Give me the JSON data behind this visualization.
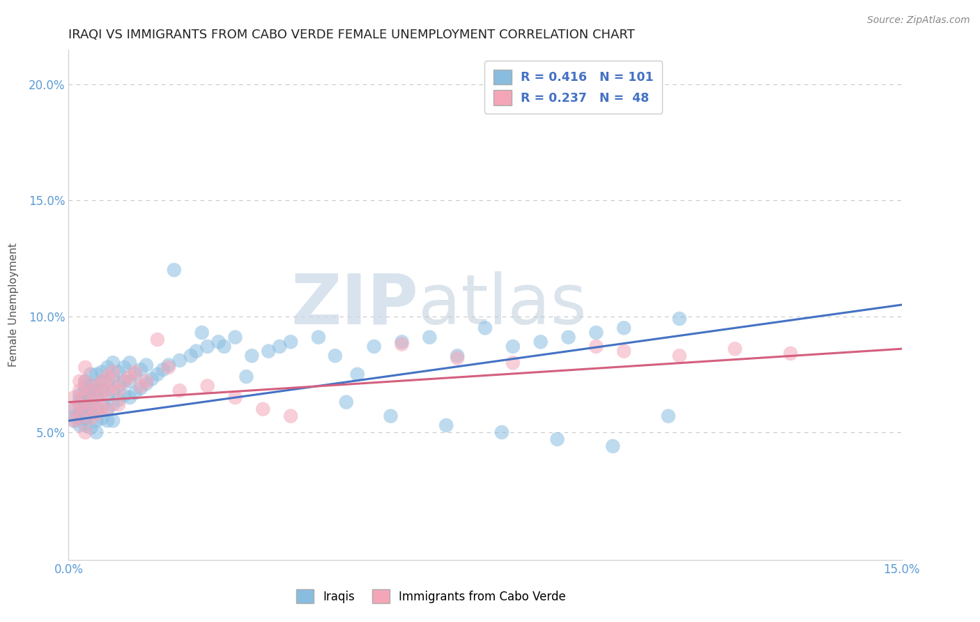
{
  "title": "IRAQI VS IMMIGRANTS FROM CABO VERDE FEMALE UNEMPLOYMENT CORRELATION CHART",
  "source": "Source: ZipAtlas.com",
  "ylabel": "Female Unemployment",
  "xlim": [
    0.0,
    0.15
  ],
  "ylim": [
    -0.005,
    0.215
  ],
  "y_ticks": [
    0.05,
    0.1,
    0.15,
    0.2
  ],
  "y_tick_labels": [
    "5.0%",
    "10.0%",
    "15.0%",
    "20.0%"
  ],
  "blue_R": 0.416,
  "blue_N": 101,
  "pink_R": 0.237,
  "pink_N": 48,
  "blue_color": "#89bde0",
  "pink_color": "#f4a6b8",
  "blue_line_color": "#4472c4",
  "pink_line_color": "#d45f7e",
  "legend_blue_label": "Iraqis",
  "legend_pink_label": "Immigrants from Cabo Verde",
  "watermark_zip": "ZIP",
  "watermark_atlas": "atlas",
  "title_fontsize": 13,
  "axis_label_fontsize": 11,
  "tick_fontsize": 12,
  "source_fontsize": 10,
  "blue_line_x0": 0.0,
  "blue_line_y0": 0.055,
  "blue_line_x1": 0.15,
  "blue_line_y1": 0.105,
  "pink_line_x0": 0.0,
  "pink_line_y0": 0.063,
  "pink_line_x1": 0.15,
  "pink_line_y1": 0.086,
  "blue_scatter_x": [
    0.001,
    0.001,
    0.001,
    0.002,
    0.002,
    0.002,
    0.002,
    0.002,
    0.002,
    0.003,
    0.003,
    0.003,
    0.003,
    0.003,
    0.003,
    0.003,
    0.003,
    0.003,
    0.004,
    0.004,
    0.004,
    0.004,
    0.004,
    0.004,
    0.004,
    0.005,
    0.005,
    0.005,
    0.005,
    0.005,
    0.005,
    0.005,
    0.006,
    0.006,
    0.006,
    0.006,
    0.006,
    0.007,
    0.007,
    0.007,
    0.007,
    0.007,
    0.008,
    0.008,
    0.008,
    0.008,
    0.008,
    0.009,
    0.009,
    0.009,
    0.01,
    0.01,
    0.01,
    0.011,
    0.011,
    0.011,
    0.012,
    0.012,
    0.013,
    0.013,
    0.014,
    0.014,
    0.015,
    0.016,
    0.017,
    0.018,
    0.02,
    0.022,
    0.023,
    0.025,
    0.027,
    0.03,
    0.033,
    0.036,
    0.038,
    0.04,
    0.045,
    0.048,
    0.052,
    0.055,
    0.06,
    0.065,
    0.07,
    0.075,
    0.08,
    0.085,
    0.09,
    0.095,
    0.1,
    0.11,
    0.019,
    0.024,
    0.028,
    0.032,
    0.05,
    0.058,
    0.068,
    0.078,
    0.088,
    0.098,
    0.108
  ],
  "blue_scatter_y": [
    0.057,
    0.06,
    0.055,
    0.058,
    0.062,
    0.064,
    0.056,
    0.053,
    0.066,
    0.06,
    0.065,
    0.058,
    0.07,
    0.063,
    0.056,
    0.068,
    0.072,
    0.053,
    0.06,
    0.065,
    0.07,
    0.058,
    0.075,
    0.052,
    0.068,
    0.06,
    0.065,
    0.07,
    0.055,
    0.075,
    0.05,
    0.068,
    0.062,
    0.068,
    0.072,
    0.056,
    0.076,
    0.06,
    0.066,
    0.072,
    0.055,
    0.078,
    0.062,
    0.068,
    0.074,
    0.055,
    0.08,
    0.064,
    0.07,
    0.076,
    0.066,
    0.072,
    0.078,
    0.065,
    0.072,
    0.08,
    0.067,
    0.075,
    0.069,
    0.077,
    0.071,
    0.079,
    0.073,
    0.075,
    0.077,
    0.079,
    0.081,
    0.083,
    0.085,
    0.087,
    0.089,
    0.091,
    0.083,
    0.085,
    0.087,
    0.089,
    0.091,
    0.083,
    0.075,
    0.087,
    0.089,
    0.091,
    0.083,
    0.095,
    0.087,
    0.089,
    0.091,
    0.093,
    0.095,
    0.099,
    0.12,
    0.093,
    0.087,
    0.074,
    0.063,
    0.057,
    0.053,
    0.05,
    0.047,
    0.044,
    0.057
  ],
  "pink_scatter_x": [
    0.001,
    0.001,
    0.001,
    0.002,
    0.002,
    0.002,
    0.002,
    0.003,
    0.003,
    0.003,
    0.003,
    0.003,
    0.004,
    0.004,
    0.004,
    0.005,
    0.005,
    0.005,
    0.006,
    0.006,
    0.006,
    0.007,
    0.007,
    0.007,
    0.008,
    0.008,
    0.009,
    0.009,
    0.01,
    0.011,
    0.012,
    0.013,
    0.014,
    0.016,
    0.018,
    0.02,
    0.025,
    0.03,
    0.035,
    0.04,
    0.06,
    0.07,
    0.08,
    0.095,
    0.1,
    0.11,
    0.12,
    0.13
  ],
  "pink_scatter_y": [
    0.06,
    0.065,
    0.055,
    0.062,
    0.068,
    0.056,
    0.072,
    0.06,
    0.066,
    0.072,
    0.05,
    0.078,
    0.062,
    0.068,
    0.056,
    0.064,
    0.07,
    0.058,
    0.066,
    0.072,
    0.06,
    0.068,
    0.074,
    0.06,
    0.07,
    0.076,
    0.062,
    0.068,
    0.072,
    0.074,
    0.076,
    0.07,
    0.072,
    0.09,
    0.078,
    0.068,
    0.07,
    0.065,
    0.06,
    0.057,
    0.088,
    0.082,
    0.08,
    0.087,
    0.085,
    0.083,
    0.086,
    0.084
  ]
}
